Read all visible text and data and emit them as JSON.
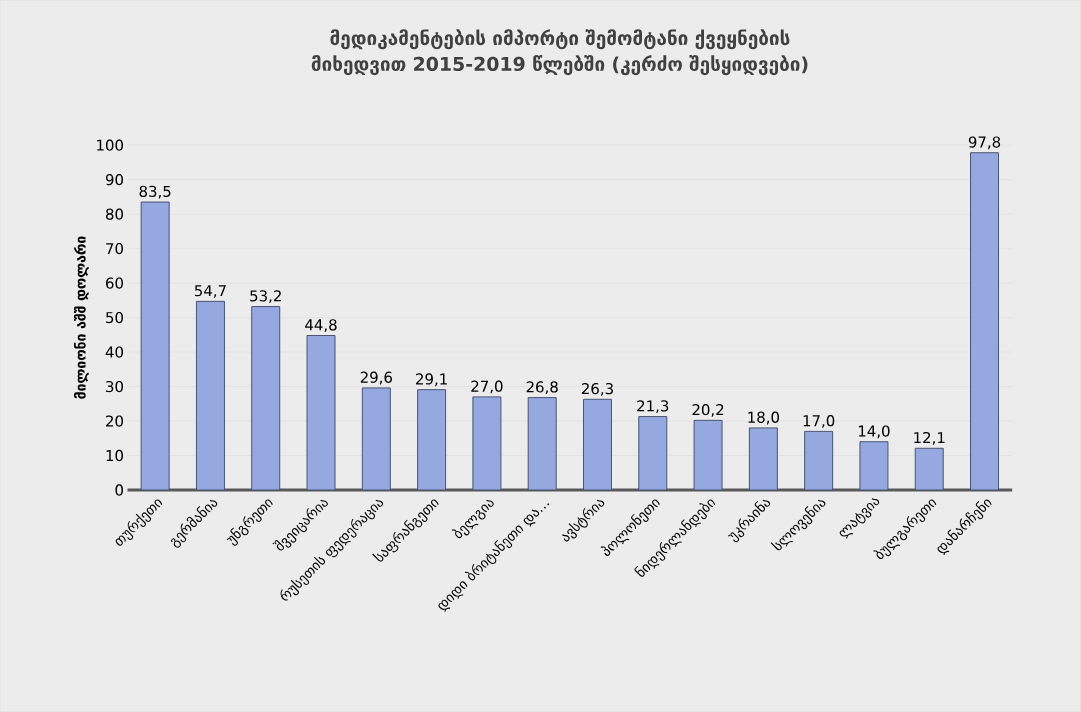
{
  "chart_data": {
    "type": "bar",
    "title": "მედიკამენტების იმპორტი შემომტანი ქვეყნების მიხედვით 2015-2019 წლებში (კერძო შესყიდვები)",
    "ylabel": "მილიონი აშშ დოლარი",
    "categories": [
      "თურქეთი",
      "გერმანია",
      "უნგრეთი",
      "შვეიცარია",
      "რუსეთის ფედერაცია",
      "საფრანგეთი",
      "ბელგია",
      "დიდი ბრიტანეთი და…",
      "ავსტრია",
      "პოლონეთი",
      "ნიდერლანდები",
      "უკრაინა",
      "სლოვენია",
      "ლატვია",
      "ბულგარეთი",
      "დანარჩენი"
    ],
    "values": [
      83.5,
      54.7,
      53.2,
      44.8,
      29.6,
      29.1,
      27.0,
      26.8,
      26.3,
      21.3,
      20.2,
      18.0,
      17.0,
      14.0,
      12.1,
      97.8
    ],
    "value_labels": [
      "83,5",
      "54,7",
      "53,2",
      "44,8",
      "29,6",
      "29,1",
      "27,0",
      "26,8",
      "26,3",
      "21,3",
      "20,2",
      "18,0",
      "17,0",
      "14,0",
      "12,1",
      "97,8"
    ],
    "color": "#95a8e0",
    "ylim": [
      0,
      100
    ],
    "yticks": [
      0,
      10,
      20,
      30,
      40,
      50,
      60,
      70,
      80,
      90,
      100
    ],
    "grid": "y"
  }
}
